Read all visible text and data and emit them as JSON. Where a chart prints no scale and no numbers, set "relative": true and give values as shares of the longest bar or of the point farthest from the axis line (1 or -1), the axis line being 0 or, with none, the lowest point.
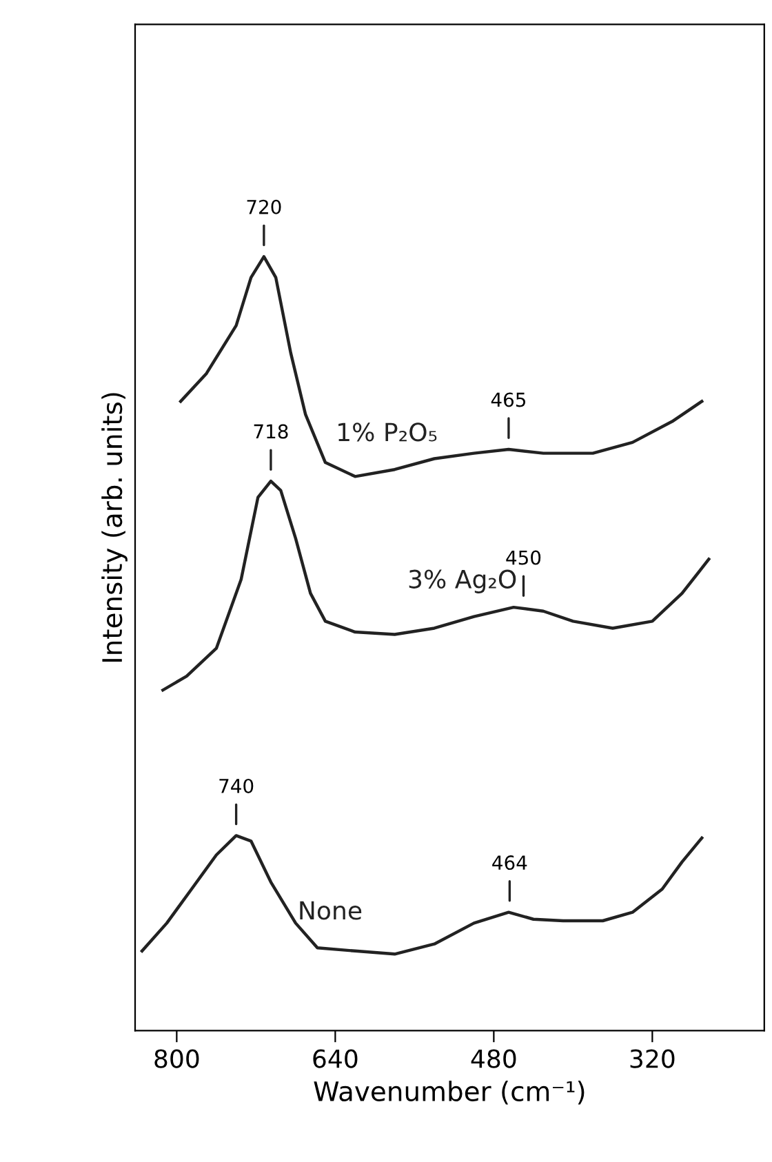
{
  "chart_data": {
    "type": "line",
    "relative": true,
    "xlabel": "Wavenumber (cm⁻¹)",
    "ylabel": "Intensity (arb. units)",
    "xlim": [
      842,
      207
    ],
    "xticks": [
      800,
      640,
      480,
      320
    ],
    "grid": false,
    "marker": "none",
    "line_style": "solid",
    "tick_labels": "x",
    "series": [
      {
        "name": "1% P₂O₅",
        "color": "#222222",
        "x": [
          796,
          770,
          740,
          725,
          712,
          700,
          685,
          670,
          650,
          620,
          580,
          540,
          500,
          465,
          430,
          380,
          340,
          300,
          270
        ],
        "values": [
          0.813,
          0.849,
          0.911,
          0.973,
          1.0,
          0.973,
          0.876,
          0.796,
          0.734,
          0.716,
          0.725,
          0.739,
          0.746,
          0.751,
          0.746,
          0.746,
          0.76,
          0.787,
          0.813
        ]
      },
      {
        "name": "3% Ag₂O",
        "color": "#222222",
        "x": [
          814,
          790,
          760,
          735,
          718,
          705,
          695,
          680,
          665,
          650,
          620,
          580,
          540,
          500,
          460,
          430,
          400,
          360,
          320,
          290,
          263
        ],
        "values": [
          0.44,
          0.458,
          0.494,
          0.583,
          0.689,
          0.71,
          0.698,
          0.636,
          0.565,
          0.529,
          0.515,
          0.512,
          0.52,
          0.535,
          0.547,
          0.542,
          0.529,
          0.52,
          0.529,
          0.565,
          0.609
        ]
      },
      {
        "name": "None",
        "color": "#222222",
        "x": [
          835,
          810,
          785,
          760,
          740,
          725,
          705,
          680,
          658,
          620,
          580,
          540,
          500,
          465,
          440,
          410,
          370,
          340,
          310,
          290,
          270
        ],
        "values": [
          0.103,
          0.139,
          0.183,
          0.227,
          0.252,
          0.245,
          0.192,
          0.139,
          0.107,
          0.103,
          0.099,
          0.112,
          0.139,
          0.153,
          0.144,
          0.142,
          0.142,
          0.153,
          0.183,
          0.218,
          0.249
        ]
      }
    ],
    "annotations": [
      {
        "text": "720",
        "x": 712,
        "y": 1.0
      },
      {
        "text": "465",
        "x": 465,
        "y": 0.751
      },
      {
        "text": "718",
        "x": 705,
        "y": 0.71
      },
      {
        "text": "450",
        "x": 450,
        "y": 0.547
      },
      {
        "text": "740",
        "x": 740,
        "y": 0.252
      },
      {
        "text": "464",
        "x": 464,
        "y": 0.153
      }
    ]
  }
}
